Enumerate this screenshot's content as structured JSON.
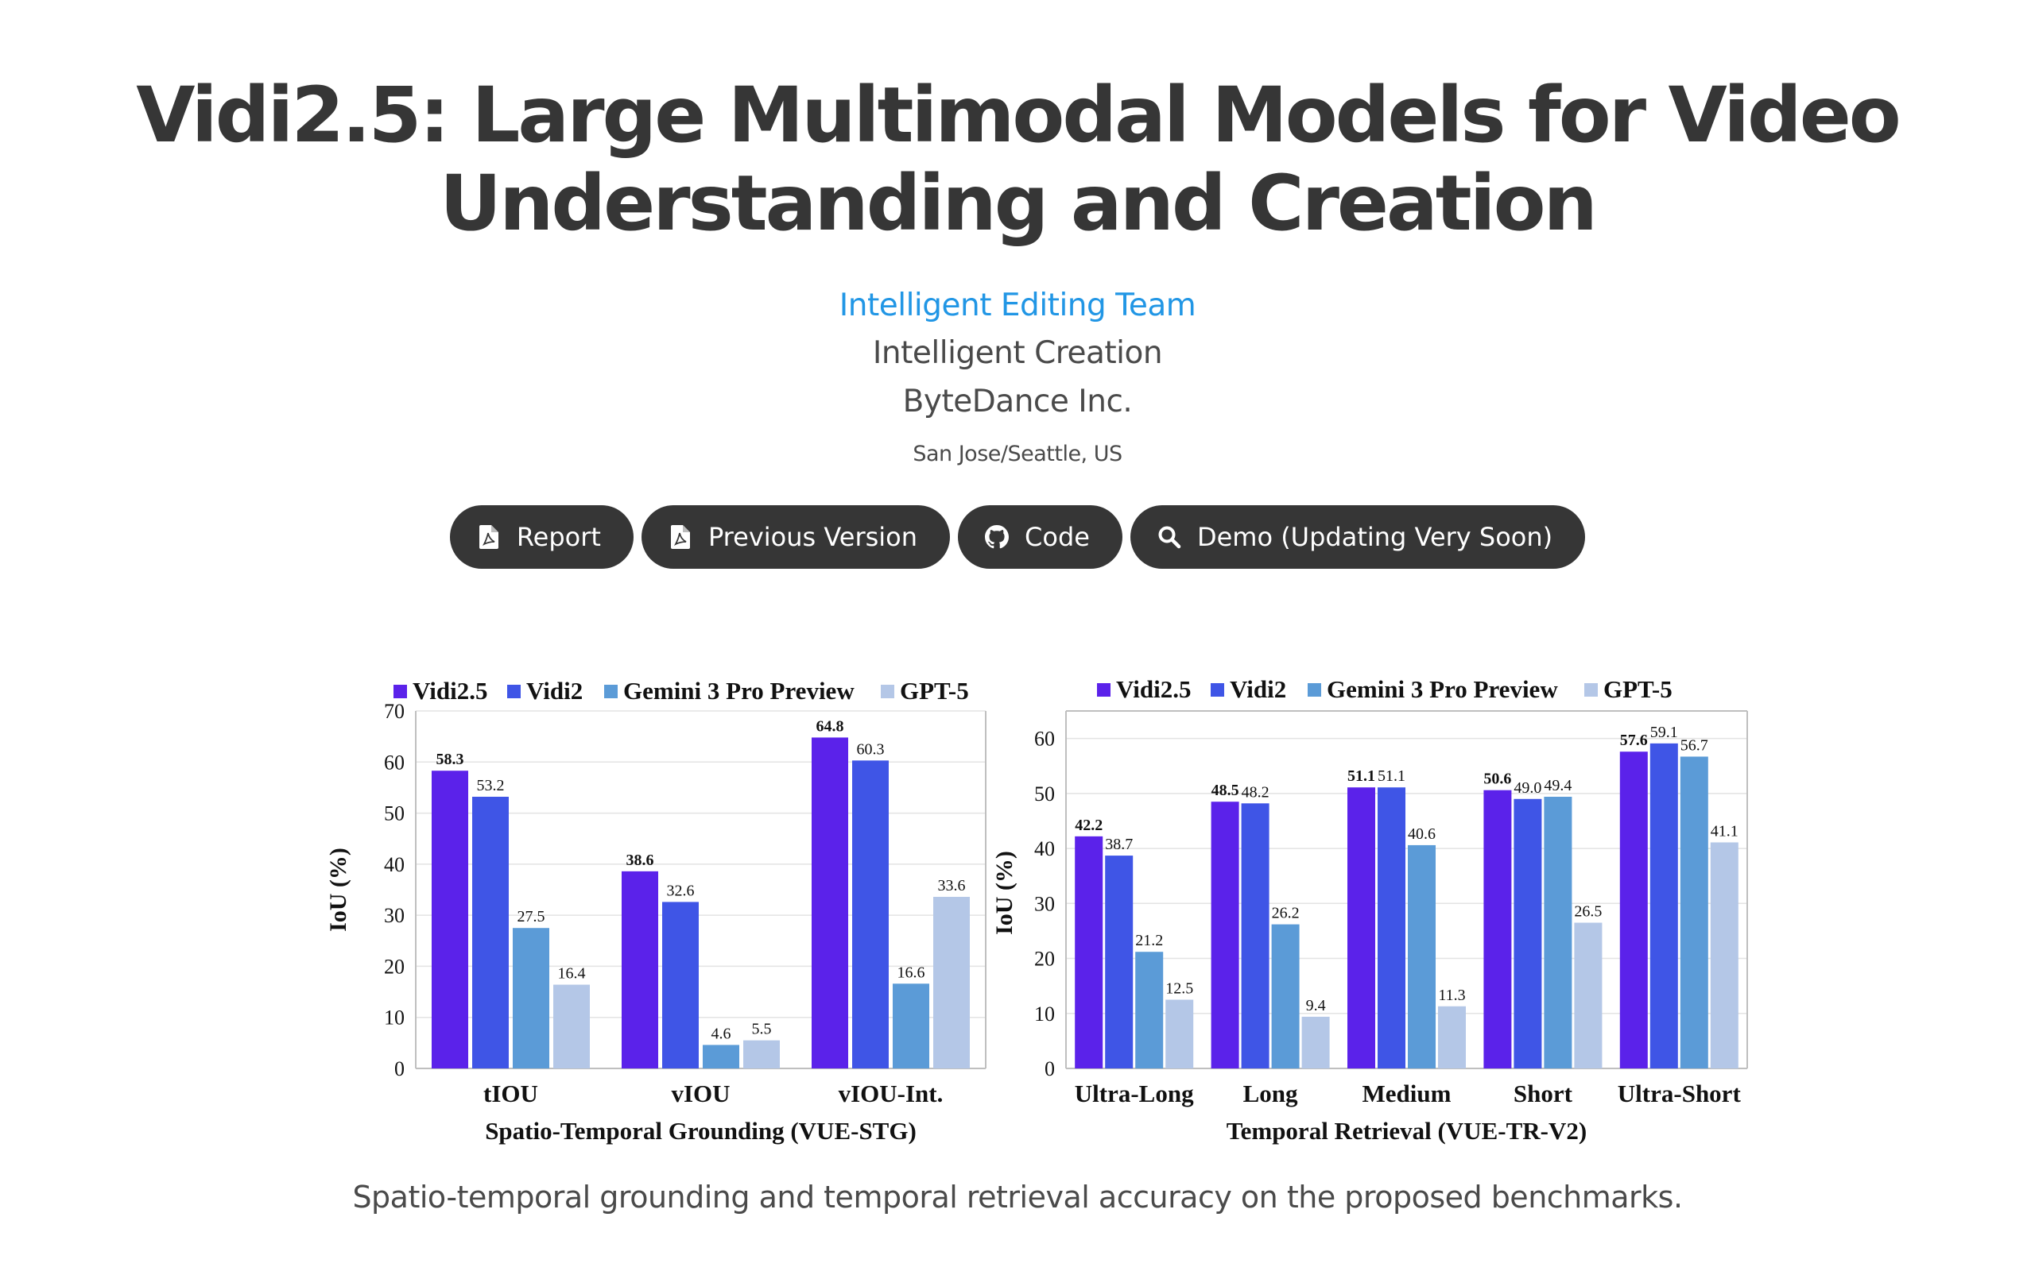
{
  "header": {
    "title_line1": "Vidi2.5: Large Multimodal Models for Video",
    "title_line2": "Understanding and Creation",
    "team": "Intelligent Editing Team",
    "affiliation_1": "Intelligent Creation",
    "affiliation_2": "ByteDance Inc.",
    "location": "San Jose/Seattle, US"
  },
  "links": [
    {
      "label": "Report",
      "icon": "file-pdf-icon"
    },
    {
      "label": "Previous Version",
      "icon": "file-pdf-icon"
    },
    {
      "label": "Code",
      "icon": "github-icon"
    },
    {
      "label": "Demo (Updating Very Soon)",
      "icon": "search-icon"
    }
  ],
  "colors": {
    "vidi25": "#5b22ea",
    "vidi2": "#3f55e6",
    "gemini": "#5b9bd7",
    "gpt5": "#b4c7e7",
    "button_bg": "#363636",
    "link": "#2196e5"
  },
  "chart_data": [
    {
      "type": "bar",
      "categories": [
        "tIOU",
        "vIOU",
        "vIOU-Int."
      ],
      "series": [
        {
          "name": "Vidi2.5",
          "values": [
            58.3,
            38.6,
            64.8
          ]
        },
        {
          "name": "Vidi2",
          "values": [
            53.2,
            32.6,
            60.3
          ]
        },
        {
          "name": "Gemini 3 Pro Preview",
          "values": [
            27.5,
            4.6,
            16.6
          ]
        },
        {
          "name": "GPT-5",
          "values": [
            16.4,
            5.5,
            33.6
          ]
        }
      ],
      "ylabel": "IoU (%)",
      "xlabel": "Spatio-Temporal Grounding (VUE-STG)",
      "ylim": [
        0,
        70
      ],
      "yticks": [
        0,
        10,
        20,
        30,
        40,
        50,
        60,
        70
      ],
      "grid": true,
      "legend": "top"
    },
    {
      "type": "bar",
      "categories": [
        "Ultra-Long",
        "Long",
        "Medium",
        "Short",
        "Ultra-Short"
      ],
      "series": [
        {
          "name": "Vidi2.5",
          "values": [
            42.2,
            48.5,
            51.1,
            50.6,
            57.6
          ]
        },
        {
          "name": "Vidi2",
          "values": [
            38.7,
            48.2,
            51.1,
            49.0,
            59.1
          ]
        },
        {
          "name": "Gemini 3 Pro Preview",
          "values": [
            21.2,
            26.2,
            40.6,
            49.4,
            56.7
          ]
        },
        {
          "name": "GPT-5",
          "values": [
            12.5,
            9.4,
            11.3,
            26.5,
            41.1
          ]
        }
      ],
      "ylabel": "IoU (%)",
      "xlabel": "Temporal Retrieval (VUE-TR-V2)",
      "ylim": [
        0,
        65
      ],
      "yticks": [
        0,
        10,
        20,
        30,
        40,
        50,
        60
      ],
      "grid": true,
      "legend": "top"
    }
  ],
  "caption": "Spatio-temporal grounding and temporal retrieval accuracy on the proposed benchmarks."
}
